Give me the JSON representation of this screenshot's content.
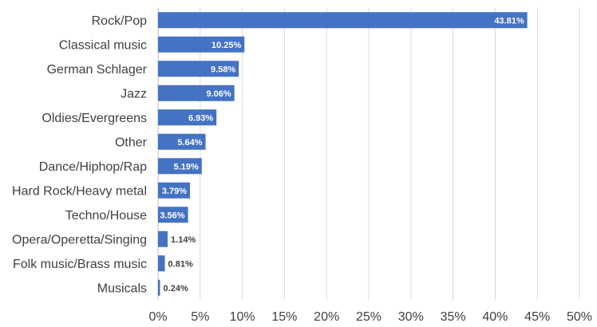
{
  "chart_data": {
    "type": "bar",
    "orientation": "horizontal",
    "categories": [
      "Rock/Pop",
      "Classical music",
      "German Schlager",
      "Jazz",
      "Oldies/Evergreens",
      "Other",
      "Dance/Hiphop/Rap",
      "Hard Rock/Heavy metal",
      "Techno/House",
      "Opera/Operetta/Singing",
      "Folk music/Brass music",
      "Musicals"
    ],
    "values": [
      43.81,
      10.25,
      9.58,
      9.06,
      6.93,
      5.64,
      5.19,
      3.79,
      3.56,
      1.14,
      0.81,
      0.24
    ],
    "value_labels": [
      "43.81%",
      "10.25%",
      "9.58%",
      "9.06%",
      "6.93%",
      "5.64%",
      "5.19%",
      "3.79%",
      "3.56%",
      "1.14%",
      "0.81%",
      "0.24%"
    ],
    "xlim": [
      0,
      50
    ],
    "x_ticks": [
      0,
      5,
      10,
      15,
      20,
      25,
      30,
      35,
      40,
      45,
      50
    ],
    "x_tick_labels": [
      "0%",
      "5%",
      "10%",
      "15%",
      "20%",
      "25%",
      "30%",
      "35%",
      "40%",
      "45%",
      "50%"
    ],
    "grid": "vertical",
    "legend": "none",
    "colors": {
      "bar": "#4472c4",
      "grid": "#d9d9d9",
      "text": "#404040"
    }
  }
}
